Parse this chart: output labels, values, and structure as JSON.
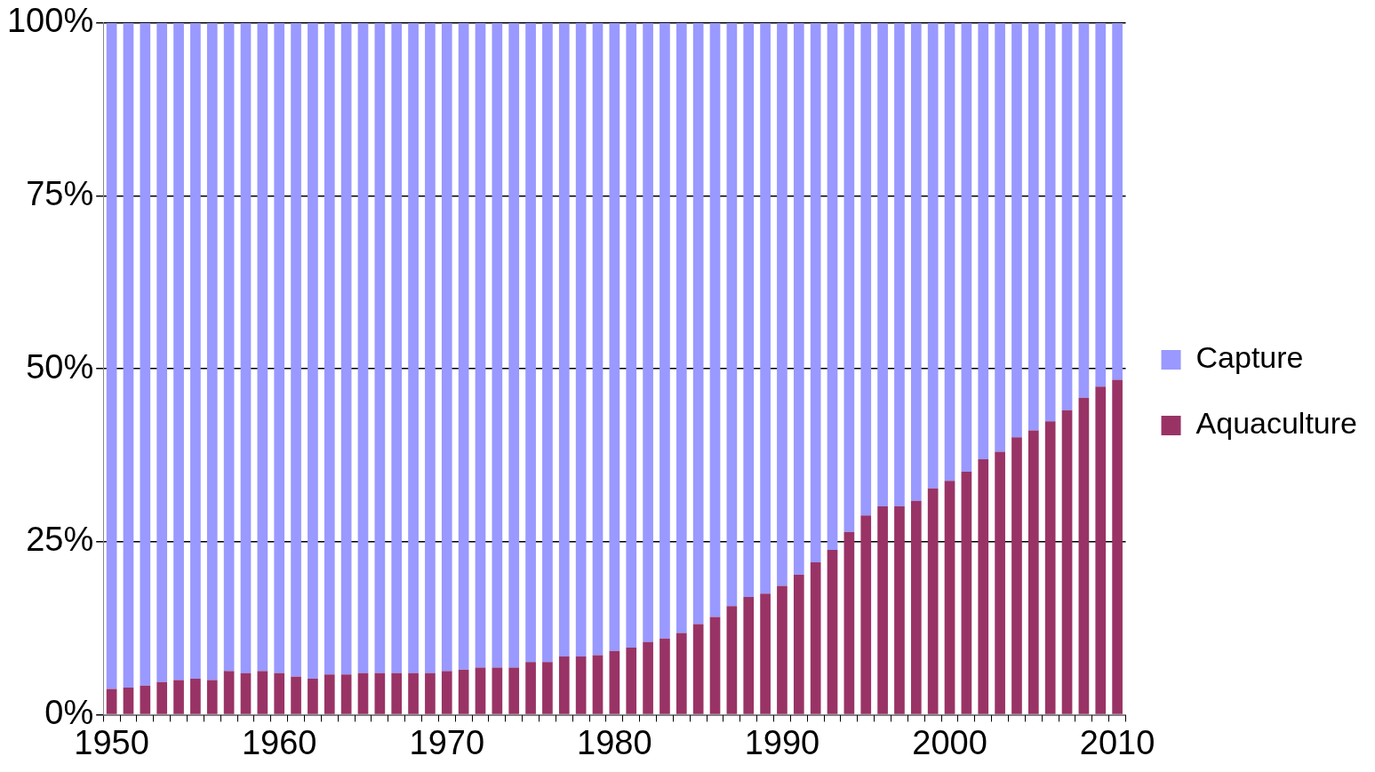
{
  "chart_data": {
    "type": "bar",
    "stacked": true,
    "categories": [
      "1950",
      null,
      null,
      null,
      null,
      null,
      null,
      null,
      null,
      null,
      "1960",
      null,
      null,
      null,
      null,
      null,
      null,
      null,
      null,
      null,
      "1970",
      null,
      null,
      null,
      null,
      null,
      null,
      null,
      null,
      null,
      "1980",
      null,
      null,
      null,
      null,
      null,
      null,
      null,
      null,
      null,
      "1990",
      null,
      null,
      null,
      null,
      null,
      null,
      null,
      null,
      null,
      "2000",
      null,
      null,
      null,
      null,
      null,
      null,
      null,
      null,
      null,
      "2010"
    ],
    "series": [
      {
        "name": "Aquaculture",
        "color": "#993366",
        "values": [
          3.7,
          3.9,
          4.2,
          4.7,
          5.0,
          5.2,
          5.0,
          6.3,
          6.0,
          6.3,
          6.0,
          5.5,
          5.2,
          5.8,
          5.8,
          6.0,
          6.0,
          6.0,
          6.0,
          6.0,
          6.3,
          6.5,
          6.8,
          6.8,
          6.8,
          7.6,
          7.6,
          8.4,
          8.4,
          8.6,
          9.2,
          9.7,
          10.5,
          11.0,
          11.8,
          13.1,
          14.1,
          15.7,
          17.0,
          17.5,
          18.6,
          20.2,
          22.0,
          23.8,
          26.4,
          28.8,
          30.1,
          30.1,
          30.9,
          32.7,
          33.8,
          35.1,
          36.9,
          38.0,
          40.1,
          41.1,
          42.4,
          44.0,
          45.8,
          47.4,
          48.4
        ]
      },
      {
        "name": "Capture",
        "color": "#9999ff",
        "values": [
          96.3,
          96.1,
          95.8,
          95.3,
          95.0,
          94.8,
          95.0,
          93.7,
          94.0,
          93.7,
          94.0,
          94.5,
          94.8,
          94.2,
          94.2,
          94.0,
          94.0,
          94.0,
          94.0,
          94.0,
          93.7,
          93.5,
          93.2,
          93.2,
          93.2,
          92.4,
          92.4,
          91.6,
          91.6,
          91.4,
          90.8,
          90.3,
          89.5,
          89.0,
          88.2,
          86.9,
          85.9,
          84.3,
          83.0,
          82.5,
          81.4,
          79.8,
          78.0,
          76.2,
          73.6,
          71.2,
          69.9,
          69.9,
          69.1,
          67.3,
          66.2,
          64.9,
          63.1,
          62.0,
          59.9,
          58.9,
          57.6,
          56.0,
          54.2,
          52.6,
          51.6
        ]
      }
    ],
    "ylim": [
      0,
      100
    ],
    "yticks": [
      {
        "value": 0,
        "label": "0%"
      },
      {
        "value": 25,
        "label": "25%"
      },
      {
        "value": 50,
        "label": "50%"
      },
      {
        "value": 75,
        "label": "75%"
      },
      {
        "value": 100,
        "label": "100%"
      }
    ],
    "grid": "y",
    "legend": "right"
  }
}
